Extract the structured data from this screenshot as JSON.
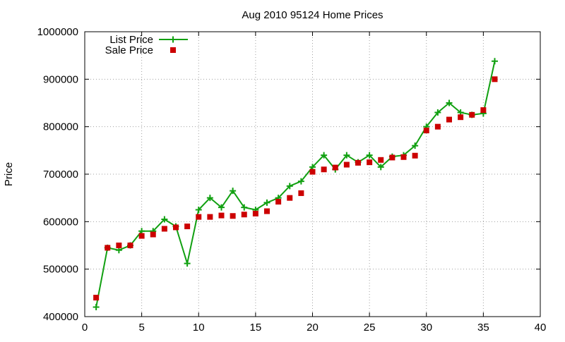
{
  "chart_data": {
    "type": "line",
    "title": "Aug 2010 95124 Home Prices",
    "xlabel": "",
    "ylabel": "Price",
    "xlim": [
      0,
      40
    ],
    "ylim": [
      400000,
      1000000
    ],
    "x_ticks": [
      0,
      5,
      10,
      15,
      20,
      25,
      30,
      35,
      40
    ],
    "y_ticks": [
      400000,
      500000,
      600000,
      700000,
      800000,
      900000,
      1000000
    ],
    "x_tick_labels": [
      "0",
      "5",
      "10",
      "15",
      "20",
      "25",
      "30",
      "35",
      "40"
    ],
    "y_tick_labels": [
      "400000",
      "500000",
      "600000",
      "700000",
      "800000",
      "900000",
      "1000000"
    ],
    "grid": true,
    "legend_position": "top-left",
    "series": [
      {
        "name": "List Price",
        "style": "line-with-plus-markers",
        "color": "#11a011",
        "x": [
          1,
          2,
          3,
          4,
          5,
          6,
          7,
          8,
          9,
          10,
          11,
          12,
          13,
          14,
          15,
          16,
          17,
          18,
          19,
          20,
          21,
          22,
          23,
          24,
          25,
          26,
          27,
          28,
          29,
          30,
          31,
          32,
          33,
          34,
          35,
          36
        ],
        "values": [
          420000,
          545000,
          540000,
          550000,
          580000,
          580000,
          605000,
          590000,
          512000,
          625000,
          650000,
          630000,
          665000,
          630000,
          625000,
          640000,
          650000,
          675000,
          685000,
          715000,
          740000,
          710000,
          740000,
          725000,
          740000,
          715000,
          737000,
          740000,
          760000,
          800000,
          830000,
          850000,
          830000,
          825000,
          828000,
          938000
        ]
      },
      {
        "name": "Sale Price",
        "style": "square-markers",
        "color": "#cc0000",
        "x": [
          1,
          2,
          3,
          4,
          5,
          6,
          7,
          8,
          9,
          10,
          11,
          12,
          13,
          14,
          15,
          16,
          17,
          18,
          19,
          20,
          21,
          22,
          23,
          24,
          25,
          26,
          27,
          28,
          29,
          30,
          31,
          32,
          33,
          34,
          35,
          36
        ],
        "values": [
          440000,
          545000,
          550000,
          550000,
          570000,
          573000,
          585000,
          588000,
          590000,
          610000,
          610000,
          613000,
          612000,
          615000,
          617000,
          622000,
          642000,
          650000,
          660000,
          705000,
          710000,
          714000,
          720000,
          724000,
          725000,
          730000,
          735000,
          736000,
          739000,
          792000,
          800000,
          815000,
          820000,
          825000,
          835000,
          900000
        ]
      }
    ]
  }
}
